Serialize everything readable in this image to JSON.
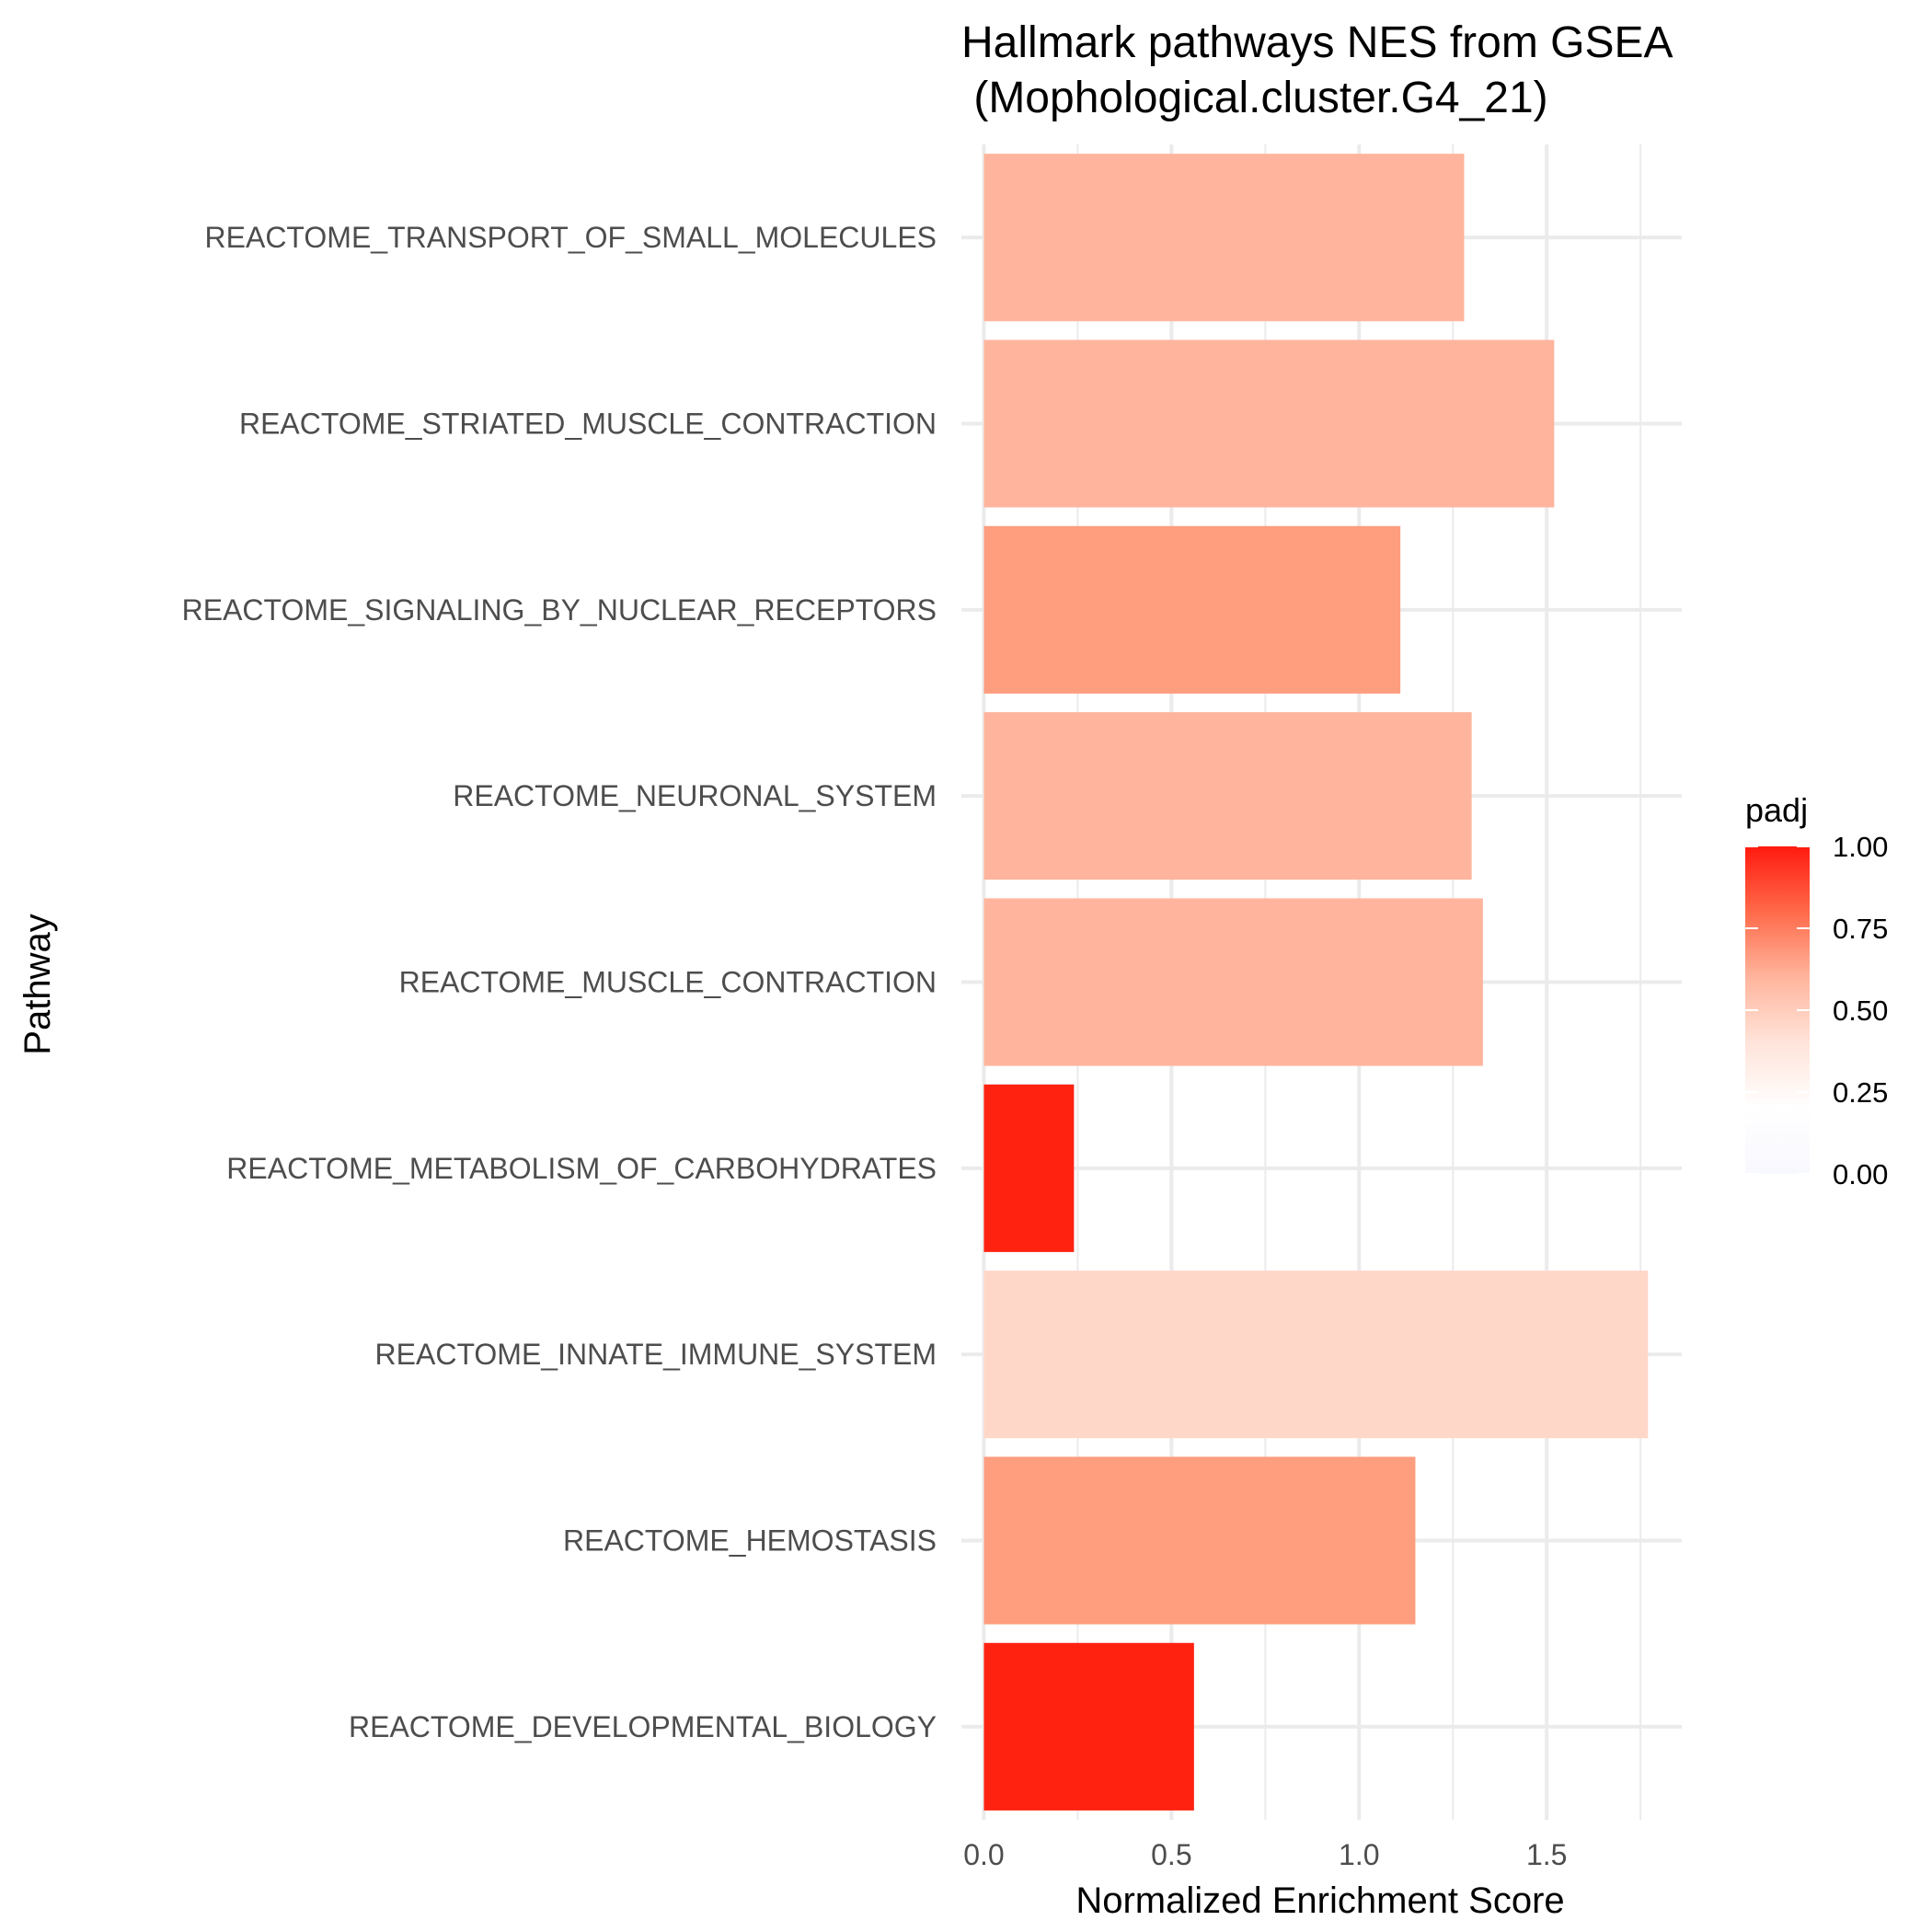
{
  "chart_data": {
    "type": "bar",
    "orientation": "horizontal",
    "title_lines": [
      "Hallmark pathways NES from GSEA",
      " (Mophological.cluster.G4_21)"
    ],
    "xlabel": "Normalized Enrichment Score",
    "ylabel": "Pathway",
    "xlim": [
      -0.06,
      1.86
    ],
    "x_ticks": [
      0.0,
      0.5,
      1.0,
      1.5
    ],
    "x_tick_labels": [
      "0.0",
      "0.5",
      "1.0",
      "1.5"
    ],
    "grid": true,
    "categories": [
      "REACTOME_TRANSPORT_OF_SMALL_MOLECULES",
      "REACTOME_STRIATED_MUSCLE_CONTRACTION",
      "REACTOME_SIGNALING_BY_NUCLEAR_RECEPTORS",
      "REACTOME_NEURONAL_SYSTEM",
      "REACTOME_MUSCLE_CONTRACTION",
      "REACTOME_METABOLISM_OF_CARBOHYDRATES",
      "REACTOME_INNATE_IMMUNE_SYSTEM",
      "REACTOME_HEMOSTASIS",
      "REACTOME_DEVELOPMENTAL_BIOLOGY"
    ],
    "values": [
      1.28,
      1.52,
      1.11,
      1.3,
      1.33,
      0.24,
      1.77,
      1.15,
      0.56
    ],
    "padj": [
      0.45,
      0.45,
      0.55,
      0.45,
      0.45,
      1.0,
      0.25,
      0.55,
      1.0
    ],
    "colors": [
      "#ffb59d",
      "#ffb59d",
      "#ff9d7f",
      "#ffb59d",
      "#ffb59d",
      "#ff2211",
      "#ffd7c9",
      "#ff9d7f",
      "#ff2211"
    ],
    "legend": {
      "title": "padj",
      "position": "right",
      "ticks": [
        1.0,
        0.75,
        0.5,
        0.25,
        0.0
      ],
      "tick_labels": [
        "1.00",
        "0.75",
        "0.50",
        "0.25",
        "0.00"
      ],
      "gradient": [
        "#ff1a0f",
        "#ff6a4a",
        "#ffb59d",
        "#ffe4da",
        "#ffffff",
        "#f8f8ff"
      ]
    }
  }
}
